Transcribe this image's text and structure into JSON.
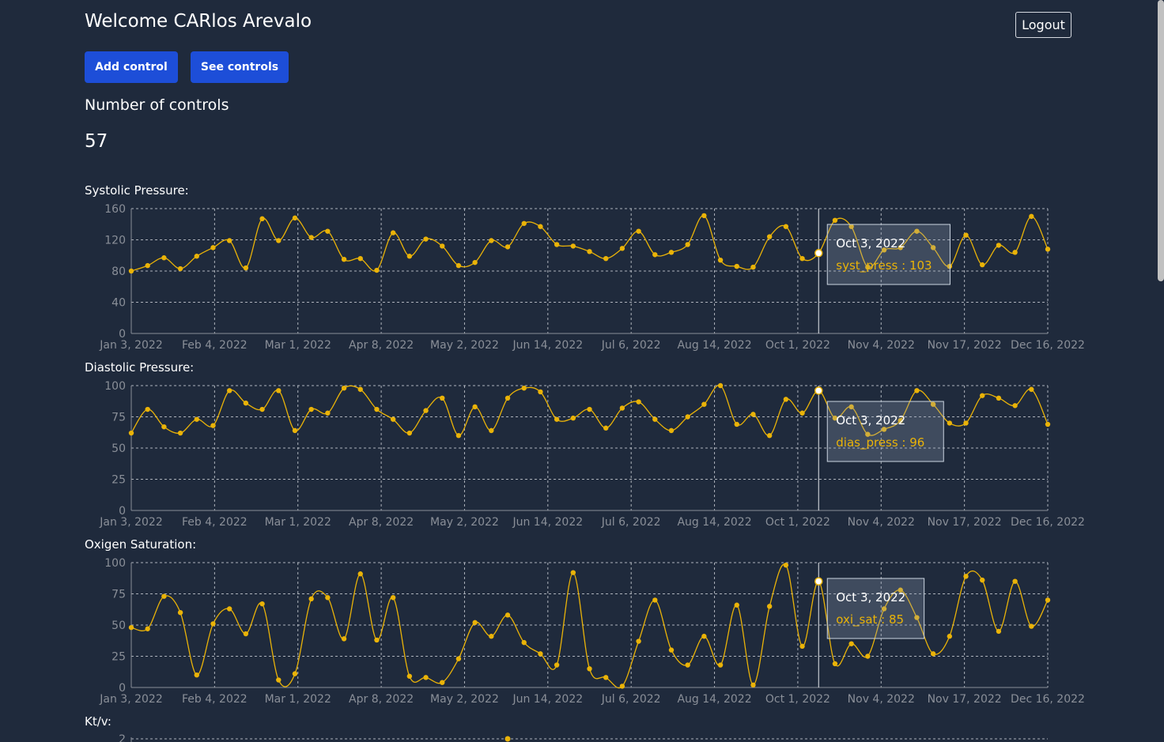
{
  "header": {
    "title": "Welcome CARlos Arevalo",
    "logout_label": "Logout"
  },
  "actions": {
    "add_label": "Add control",
    "see_label": "See controls"
  },
  "summary": {
    "count_label": "Number of controls",
    "count_value": "57"
  },
  "colors": {
    "background": "#1f2a3c",
    "series": "#eab308",
    "primary_button": "#1d4ed8",
    "grid": "#d1d5db",
    "axis_text": "#8a8f98"
  },
  "chart_data": [
    {
      "title": "Systolic Pressure:",
      "type": "line",
      "series_key": "syst_press",
      "ylim": [
        0,
        160
      ],
      "yticks": [
        0,
        40,
        80,
        120,
        160
      ],
      "x_tick_labels": [
        "Jan 3, 2022",
        "Feb 4, 2022",
        "Mar 1, 2022",
        "Apr 8, 2022",
        "May 2, 2022",
        "Jun 14, 2022",
        "Jul 6, 2022",
        "Aug 14, 2022",
        "Oct 1, 2022",
        "Nov 4, 2022",
        "Nov 17, 2022",
        "Dec 16, 2022"
      ],
      "values": [
        80,
        87,
        97,
        83,
        99,
        110,
        119,
        84,
        147,
        119,
        148,
        123,
        131,
        95,
        96,
        81,
        129,
        99,
        121,
        112,
        87,
        91,
        119,
        111,
        141,
        137,
        114,
        112,
        105,
        96,
        109,
        131,
        101,
        104,
        114,
        151,
        94,
        86,
        85,
        124,
        137,
        96,
        103,
        145,
        137,
        85,
        107,
        110,
        131,
        110,
        86,
        126,
        88,
        113,
        104,
        150,
        108
      ],
      "grid": true,
      "tooltip": {
        "date": "Oct 3, 2022",
        "text": "syst_press : 103",
        "index": 42
      }
    },
    {
      "title": "Diastolic Pressure:",
      "type": "line",
      "series_key": "dias_press",
      "ylim": [
        0,
        100
      ],
      "yticks": [
        0,
        25,
        50,
        75,
        100
      ],
      "x_tick_labels": [
        "Jan 3, 2022",
        "Feb 4, 2022",
        "Mar 1, 2022",
        "Apr 8, 2022",
        "May 2, 2022",
        "Jun 14, 2022",
        "Jul 6, 2022",
        "Aug 14, 2022",
        "Oct 1, 2022",
        "Nov 4, 2022",
        "Nov 17, 2022",
        "Dec 16, 2022"
      ],
      "values": [
        62,
        81,
        67,
        62,
        73,
        68,
        96,
        86,
        81,
        96,
        64,
        81,
        78,
        98,
        97,
        81,
        73,
        62,
        80,
        90,
        60,
        83,
        64,
        90,
        98,
        95,
        73,
        74,
        81,
        66,
        82,
        87,
        73,
        64,
        75,
        85,
        100,
        69,
        77,
        60,
        89,
        78,
        96,
        74,
        83,
        61,
        65,
        72,
        96,
        85,
        70,
        70,
        92,
        90,
        84,
        97,
        69
      ],
      "grid": true,
      "tooltip": {
        "date": "Oct 3, 2022",
        "text": "dias_press : 96",
        "index": 42
      }
    },
    {
      "title": "Oxigen Saturation:",
      "type": "line",
      "series_key": "oxi_sat",
      "ylim": [
        0,
        100
      ],
      "yticks": [
        0,
        25,
        50,
        75,
        100
      ],
      "x_tick_labels": [
        "Jan 3, 2022",
        "Feb 4, 2022",
        "Mar 1, 2022",
        "Apr 8, 2022",
        "May 2, 2022",
        "Jun 14, 2022",
        "Jul 6, 2022",
        "Aug 14, 2022",
        "Oct 1, 2022",
        "Nov 4, 2022",
        "Nov 17, 2022",
        "Dec 16, 2022"
      ],
      "values": [
        48,
        47,
        73,
        60,
        10,
        51,
        63,
        43,
        67,
        6,
        11,
        71,
        72,
        39,
        91,
        38,
        72,
        9,
        8,
        4,
        23,
        52,
        41,
        58,
        36,
        27,
        18,
        92,
        15,
        8,
        1,
        37,
        70,
        30,
        18,
        41,
        18,
        66,
        2,
        65,
        98,
        33,
        85,
        19,
        35,
        25,
        63,
        78,
        56,
        27,
        41,
        89,
        86,
        45,
        85,
        49,
        70
      ],
      "grid": true,
      "tooltip": {
        "date": "Oct 3, 2022",
        "text": "oxi_sat : 85",
        "index": 42
      }
    },
    {
      "title": "Kt/v:",
      "type": "line",
      "series_key": "ktv",
      "yticks": [
        2
      ]
    }
  ]
}
